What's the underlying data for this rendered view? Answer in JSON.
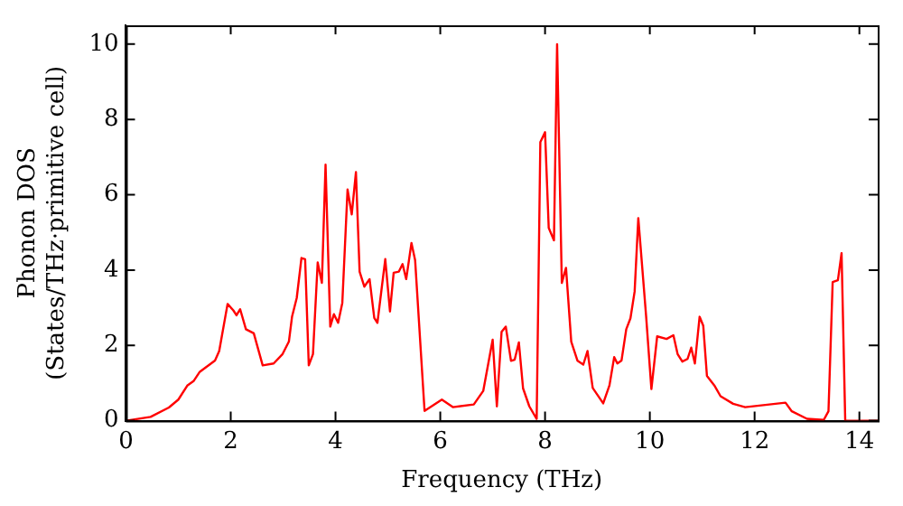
{
  "chart_data": {
    "type": "line",
    "xlabel": "Frequency (THz)",
    "ylabel": "Phonon DOS\n(States/THz·primitive cell)",
    "xlim": [
      0,
      14.35
    ],
    "ylim": [
      0,
      10.5
    ],
    "xticks": [
      0,
      2,
      4,
      6,
      8,
      10,
      12,
      14
    ],
    "yticks": [
      0,
      2,
      4,
      6,
      8,
      10
    ],
    "grid": false,
    "legend": false,
    "marker": "none",
    "line_style": "solid",
    "series": [
      {
        "color": "#ff0000",
        "x": [
          0,
          0.47,
          0.82,
          1.0,
          1.17,
          1.29,
          1.41,
          1.7,
          1.78,
          1.94,
          2.05,
          2.11,
          2.18,
          2.29,
          2.44,
          2.61,
          2.82,
          2.99,
          3.11,
          3.17,
          3.26,
          3.35,
          3.42,
          3.49,
          3.57,
          3.66,
          3.74,
          3.81,
          3.9,
          3.97,
          4.05,
          4.13,
          4.23,
          4.31,
          4.39,
          4.46,
          4.55,
          4.65,
          4.74,
          4.8,
          4.95,
          5.04,
          5.11,
          5.21,
          5.28,
          5.35,
          5.45,
          5.52,
          5.7,
          6.03,
          6.24,
          6.64,
          6.82,
          7.0,
          7.08,
          7.17,
          7.25,
          7.35,
          7.42,
          7.5,
          7.58,
          7.7,
          7.84,
          7.91,
          8.0,
          8.07,
          8.17,
          8.23,
          8.32,
          8.4,
          8.5,
          8.62,
          8.73,
          8.81,
          8.91,
          9.11,
          9.23,
          9.32,
          9.38,
          9.46,
          9.55,
          9.63,
          9.71,
          9.78,
          9.93,
          10.03,
          10.14,
          10.32,
          10.45,
          10.53,
          10.62,
          10.72,
          10.79,
          10.86,
          10.95,
          11.02,
          11.09,
          11.23,
          11.35,
          11.59,
          11.82,
          12.59,
          12.71,
          13.0,
          13.32,
          13.41,
          13.49,
          13.59,
          13.66,
          13.73,
          14.35
        ],
        "values": [
          0,
          0.1,
          0.35,
          0.56,
          0.93,
          1.05,
          1.3,
          1.6,
          1.85,
          3.1,
          2.93,
          2.8,
          2.96,
          2.43,
          2.32,
          1.47,
          1.52,
          1.77,
          2.1,
          2.76,
          3.26,
          4.32,
          4.29,
          1.47,
          1.77,
          4.2,
          3.66,
          6.8,
          2.5,
          2.83,
          2.6,
          3.13,
          6.14,
          5.48,
          6.6,
          3.96,
          3.56,
          3.76,
          2.73,
          2.6,
          4.29,
          2.9,
          3.93,
          3.96,
          4.16,
          3.76,
          4.72,
          4.26,
          0.26,
          0.56,
          0.36,
          0.43,
          0.79,
          2.15,
          0.38,
          2.36,
          2.5,
          1.59,
          1.62,
          2.08,
          0.86,
          0.38,
          0.05,
          7.4,
          7.66,
          5.12,
          4.79,
          10.0,
          3.66,
          4.06,
          2.1,
          1.59,
          1.49,
          1.85,
          0.87,
          0.46,
          0.94,
          1.69,
          1.52,
          1.6,
          2.43,
          2.72,
          3.43,
          5.38,
          2.76,
          0.84,
          2.24,
          2.17,
          2.27,
          1.77,
          1.57,
          1.64,
          1.94,
          1.52,
          2.76,
          2.52,
          1.19,
          0.94,
          0.65,
          0.45,
          0.36,
          0.48,
          0.25,
          0.05,
          0.02,
          0.25,
          3.68,
          3.73,
          4.45,
          0,
          0
        ]
      }
    ]
  }
}
